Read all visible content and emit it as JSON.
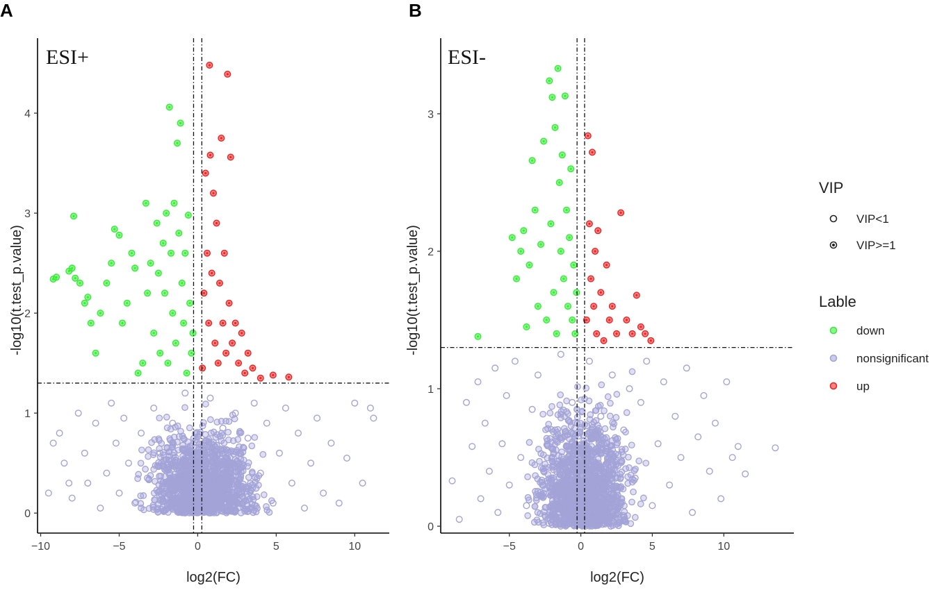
{
  "colors": {
    "down": "#33ee33",
    "nonsignificant": "#a3a3d8",
    "up": "#ee2222",
    "axis": "#000000",
    "text": "#222222"
  },
  "legend": {
    "vip_title": "VIP",
    "vip_items": [
      "VIP<1",
      "VIP>=1"
    ],
    "lable_title": "Lable",
    "lable_items": [
      "down",
      "nonsignificant",
      "up"
    ]
  },
  "chart_data": [
    {
      "panel_label": "A",
      "type": "scatter",
      "title": "ESI+",
      "xlabel": "log2(FC)",
      "ylabel": "-log10(t.test_p.value)",
      "xlim": [
        -10.2,
        12.2
      ],
      "ylim": [
        -0.2,
        4.75
      ],
      "xticks": [
        -10,
        -5,
        0,
        5,
        10
      ],
      "xtick_labels": [
        "−10",
        "−5",
        "0",
        "5",
        "10"
      ],
      "yticks": [
        0,
        1,
        2,
        3,
        4
      ],
      "ytick_labels": [
        "0",
        "1",
        "2",
        "3",
        "4"
      ],
      "fc_thresholds": [
        -0.263,
        0.263
      ],
      "p_threshold": 1.3,
      "grid": false,
      "series": [
        {
          "name": "down",
          "points": [
            [
              -9.2,
              2.34
            ],
            [
              -9.0,
              2.36
            ],
            [
              -8.2,
              2.42
            ],
            [
              -8.0,
              2.45
            ],
            [
              -7.9,
              2.97
            ],
            [
              -7.8,
              2.35
            ],
            [
              -7.5,
              2.3
            ],
            [
              -7.2,
              2.1
            ],
            [
              -7.0,
              2.16
            ],
            [
              -6.8,
              1.9
            ],
            [
              -6.5,
              1.6
            ],
            [
              -6.2,
              2.0
            ],
            [
              -5.8,
              2.3
            ],
            [
              -5.5,
              2.5
            ],
            [
              -5.3,
              2.84
            ],
            [
              -5.0,
              2.78
            ],
            [
              -4.8,
              1.9
            ],
            [
              -4.5,
              2.1
            ],
            [
              -4.2,
              2.6
            ],
            [
              -4.0,
              2.45
            ],
            [
              -3.8,
              1.4
            ],
            [
              -3.5,
              1.5
            ],
            [
              -3.3,
              3.1
            ],
            [
              -3.2,
              2.2
            ],
            [
              -3.0,
              2.5
            ],
            [
              -2.8,
              1.8
            ],
            [
              -2.6,
              2.9
            ],
            [
              -2.5,
              2.4
            ],
            [
              -2.4,
              1.6
            ],
            [
              -2.2,
              2.7
            ],
            [
              -2.1,
              2.2
            ],
            [
              -2.0,
              3.0
            ],
            [
              -1.9,
              1.5
            ],
            [
              -1.8,
              4.06
            ],
            [
              -1.7,
              2.6
            ],
            [
              -1.6,
              2.0
            ],
            [
              -1.5,
              3.1
            ],
            [
              -1.4,
              1.7
            ],
            [
              -1.3,
              3.7
            ],
            [
              -1.2,
              2.8
            ],
            [
              -1.1,
              3.9
            ],
            [
              -1.0,
              2.3
            ],
            [
              -0.9,
              1.9
            ],
            [
              -0.8,
              2.6
            ],
            [
              -0.7,
              1.4
            ],
            [
              -0.6,
              2.98
            ],
            [
              -0.5,
              2.1
            ],
            [
              -0.4,
              1.6
            ],
            [
              -0.3,
              1.8
            ]
          ]
        },
        {
          "name": "up",
          "points": [
            [
              0.3,
              1.45
            ],
            [
              0.4,
              2.2
            ],
            [
              0.5,
              3.4
            ],
            [
              0.6,
              2.6
            ],
            [
              0.7,
              1.9
            ],
            [
              0.75,
              4.48
            ],
            [
              0.8,
              3.58
            ],
            [
              0.9,
              2.4
            ],
            [
              1.0,
              3.2
            ],
            [
              1.1,
              1.7
            ],
            [
              1.2,
              2.9
            ],
            [
              1.3,
              1.5
            ],
            [
              1.4,
              2.3
            ],
            [
              1.5,
              3.75
            ],
            [
              1.6,
              1.9
            ],
            [
              1.7,
              2.6
            ],
            [
              1.8,
              1.6
            ],
            [
              1.9,
              4.39
            ],
            [
              2.0,
              2.1
            ],
            [
              2.1,
              3.56
            ],
            [
              2.2,
              1.7
            ],
            [
              2.4,
              1.9
            ],
            [
              2.6,
              1.5
            ],
            [
              2.8,
              1.8
            ],
            [
              3.0,
              1.4
            ],
            [
              3.2,
              1.6
            ],
            [
              3.5,
              1.45
            ],
            [
              4.0,
              1.35
            ],
            [
              4.8,
              1.38
            ],
            [
              5.8,
              1.36
            ]
          ]
        },
        {
          "name": "nonsignificant",
          "points": [
            [
              -9.5,
              0.2
            ],
            [
              -9.2,
              0.7
            ],
            [
              -8.8,
              0.8
            ],
            [
              -8.5,
              0.5
            ],
            [
              -8.2,
              0.3
            ],
            [
              -8.0,
              0.15
            ],
            [
              -7.6,
              1.0
            ],
            [
              -7.2,
              0.6
            ],
            [
              -7.0,
              0.3
            ],
            [
              -6.5,
              0.9
            ],
            [
              -6.2,
              0.05
            ],
            [
              -5.8,
              0.4
            ],
            [
              -5.5,
              1.1
            ],
            [
              -5.2,
              0.7
            ],
            [
              -5.0,
              0.2
            ],
            [
              -4.7,
              0.95
            ],
            [
              -4.4,
              0.5
            ],
            [
              -4.0,
              0.1
            ],
            [
              -3.6,
              0.8
            ],
            [
              -3.2,
              0.35
            ],
            [
              -2.8,
              1.05
            ],
            [
              -2.4,
              0.6
            ],
            [
              -2.0,
              0.15
            ],
            [
              -1.6,
              0.9
            ],
            [
              -1.2,
              0.45
            ],
            [
              -0.8,
              1.2
            ],
            [
              -0.4,
              0.3
            ],
            [
              0.0,
              0.02
            ],
            [
              0.4,
              0.7
            ],
            [
              0.8,
              1.15
            ],
            [
              1.2,
              0.25
            ],
            [
              1.6,
              0.85
            ],
            [
              2.0,
              0.5
            ],
            [
              2.4,
              1.0
            ],
            [
              2.8,
              0.2
            ],
            [
              3.2,
              0.75
            ],
            [
              3.6,
              1.1
            ],
            [
              4.0,
              0.4
            ],
            [
              4.4,
              0.9
            ],
            [
              4.8,
              0.1
            ],
            [
              5.2,
              0.6
            ],
            [
              5.6,
              1.05
            ],
            [
              6.0,
              0.3
            ],
            [
              6.4,
              0.8
            ],
            [
              6.8,
              0.05
            ],
            [
              7.2,
              0.5
            ],
            [
              7.6,
              0.95
            ],
            [
              8.0,
              0.2
            ],
            [
              8.5,
              0.7
            ],
            [
              9.0,
              0.1
            ],
            [
              9.5,
              0.55
            ],
            [
              10.0,
              1.1
            ],
            [
              10.5,
              0.3
            ],
            [
              11.0,
              1.05
            ],
            [
              11.2,
              0.95
            ]
          ]
        }
      ]
    },
    {
      "panel_label": "B",
      "type": "scatter",
      "title": "ESI-",
      "xlabel": "log2(FC)",
      "ylabel": "-log10(t.test_p.value)",
      "xlim": [
        -9.8,
        14.9
      ],
      "ylim": [
        -0.05,
        3.55
      ],
      "xticks": [
        -5,
        0,
        5,
        10
      ],
      "xtick_labels": [
        "−5",
        "0",
        "5",
        "10"
      ],
      "yticks": [
        0,
        1,
        2,
        3
      ],
      "ytick_labels": [
        "0",
        "1",
        "2",
        "3"
      ],
      "fc_thresholds": [
        -0.263,
        0.263
      ],
      "p_threshold": 1.3,
      "grid": false,
      "series": [
        {
          "name": "down",
          "points": [
            [
              -7.2,
              1.38
            ],
            [
              -4.8,
              2.1
            ],
            [
              -4.5,
              1.8
            ],
            [
              -4.2,
              2.0
            ],
            [
              -4.0,
              2.15
            ],
            [
              -3.8,
              1.45
            ],
            [
              -3.6,
              1.9
            ],
            [
              -3.4,
              2.66
            ],
            [
              -3.2,
              2.3
            ],
            [
              -3.0,
              1.6
            ],
            [
              -2.8,
              2.05
            ],
            [
              -2.6,
              2.8
            ],
            [
              -2.4,
              1.5
            ],
            [
              -2.2,
              3.24
            ],
            [
              -2.1,
              2.2
            ],
            [
              -2.0,
              3.12
            ],
            [
              -1.9,
              1.7
            ],
            [
              -1.8,
              2.9
            ],
            [
              -1.7,
              1.4
            ],
            [
              -1.6,
              3.33
            ],
            [
              -1.5,
              2.5
            ],
            [
              -1.4,
              2.0
            ],
            [
              -1.3,
              2.7
            ],
            [
              -1.2,
              1.8
            ],
            [
              -1.1,
              3.13
            ],
            [
              -1.0,
              2.3
            ],
            [
              -0.9,
              1.6
            ],
            [
              -0.8,
              2.1
            ],
            [
              -0.7,
              2.6
            ],
            [
              -0.6,
              1.5
            ],
            [
              -0.5,
              1.9
            ],
            [
              -0.4,
              1.4
            ],
            [
              -0.3,
              1.7
            ]
          ]
        },
        {
          "name": "up",
          "points": [
            [
              0.4,
              1.5
            ],
            [
              0.5,
              2.84
            ],
            [
              0.6,
              2.2
            ],
            [
              0.7,
              1.8
            ],
            [
              0.8,
              2.72
            ],
            [
              0.9,
              1.6
            ],
            [
              1.0,
              2.0
            ],
            [
              1.1,
              1.4
            ],
            [
              1.2,
              2.15
            ],
            [
              1.4,
              1.7
            ],
            [
              1.6,
              1.35
            ],
            [
              1.8,
              1.9
            ],
            [
              2.0,
              1.5
            ],
            [
              2.2,
              1.6
            ],
            [
              2.5,
              1.4
            ],
            [
              2.8,
              2.28
            ],
            [
              3.2,
              1.5
            ],
            [
              3.6,
              1.4
            ],
            [
              3.9,
              1.68
            ],
            [
              4.2,
              1.45
            ],
            [
              4.5,
              1.4
            ],
            [
              4.9,
              1.35
            ]
          ]
        },
        {
          "name": "nonsignificant",
          "points": [
            [
              -9.0,
              0.33
            ],
            [
              -8.5,
              0.05
            ],
            [
              -8.0,
              0.9
            ],
            [
              -7.6,
              0.58
            ],
            [
              -7.2,
              1.05
            ],
            [
              -7.0,
              0.2
            ],
            [
              -6.7,
              0.75
            ],
            [
              -6.4,
              0.4
            ],
            [
              -6.0,
              1.15
            ],
            [
              -5.8,
              0.1
            ],
            [
              -5.5,
              0.6
            ],
            [
              -5.2,
              0.95
            ],
            [
              -5.0,
              0.3
            ],
            [
              -4.6,
              1.2
            ],
            [
              -4.2,
              0.5
            ],
            [
              -3.8,
              0.15
            ],
            [
              -3.4,
              0.85
            ],
            [
              -3.0,
              1.1
            ],
            [
              -2.6,
              0.4
            ],
            [
              -2.2,
              0.02
            ],
            [
              -1.8,
              0.7
            ],
            [
              -1.4,
              1.25
            ],
            [
              -1.0,
              0.3
            ],
            [
              -0.6,
              0.9
            ],
            [
              -0.2,
              0.1
            ],
            [
              0.2,
              0.6
            ],
            [
              0.6,
              1.2
            ],
            [
              1.0,
              0.2
            ],
            [
              1.4,
              0.8
            ],
            [
              1.8,
              0.45
            ],
            [
              2.2,
              1.1
            ],
            [
              2.6,
              0.05
            ],
            [
              3.0,
              0.7
            ],
            [
              3.4,
              1.0
            ],
            [
              3.8,
              0.35
            ],
            [
              4.2,
              0.9
            ],
            [
              4.6,
              1.2
            ],
            [
              5.0,
              0.15
            ],
            [
              5.4,
              0.6
            ],
            [
              5.8,
              1.05
            ],
            [
              6.2,
              0.3
            ],
            [
              6.6,
              0.8
            ],
            [
              7.0,
              0.5
            ],
            [
              7.4,
              1.15
            ],
            [
              7.8,
              0.1
            ],
            [
              8.2,
              0.65
            ],
            [
              8.6,
              0.95
            ],
            [
              9.0,
              0.4
            ],
            [
              9.4,
              0.75
            ],
            [
              9.8,
              0.2
            ],
            [
              10.2,
              1.05
            ],
            [
              10.6,
              0.5
            ],
            [
              11.0,
              0.58
            ],
            [
              11.5,
              0.38
            ],
            [
              13.6,
              0.57
            ]
          ]
        }
      ]
    }
  ]
}
